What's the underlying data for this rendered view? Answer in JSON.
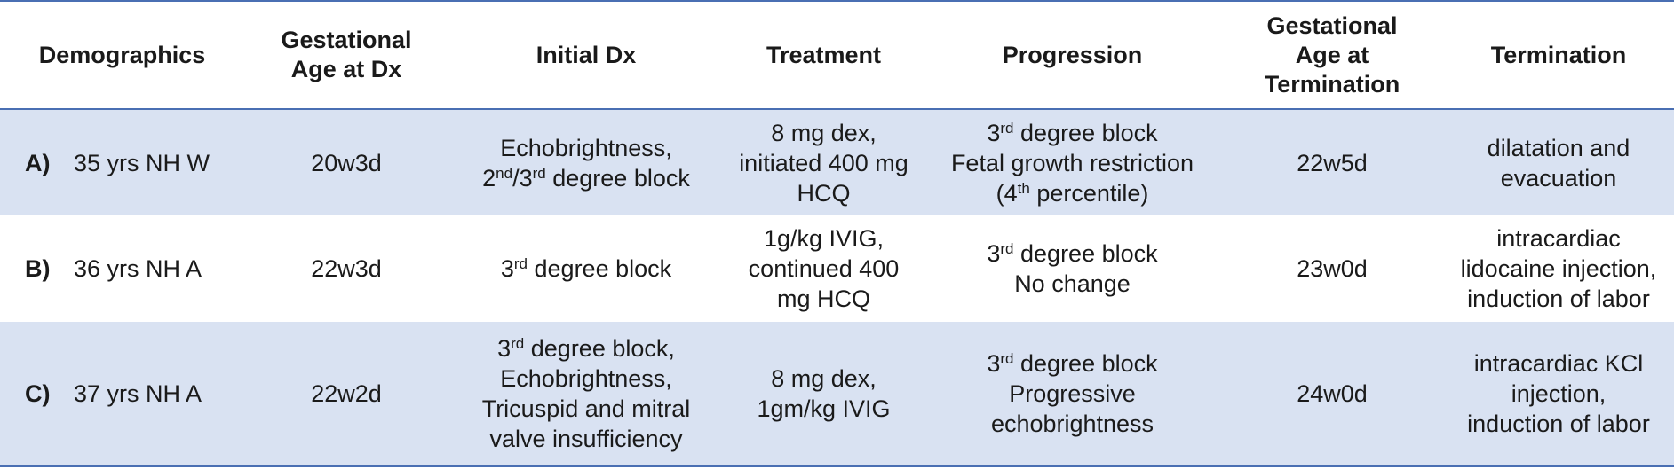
{
  "headers": {
    "demographics": "Demographics",
    "ga_dx_1": "Gestational",
    "ga_dx_2": "Age at Dx",
    "initial_dx": "Initial Dx",
    "treatment": "Treatment",
    "progression": "Progression",
    "ga_term_1": "Gestational",
    "ga_term_2": "Age at",
    "ga_term_3": "Termination",
    "termination": "Termination"
  },
  "rows": [
    {
      "label": "A)",
      "demographics": "35 yrs NH W",
      "ga_dx": "20w3d",
      "initial_dx": {
        "l1": "Echobrightness,",
        "l2_a": "2",
        "l2_sup1": "nd",
        "l2_b": "/3",
        "l2_sup2": "rd",
        "l2_c": " degree block"
      },
      "treatment": [
        "8 mg dex,",
        "initiated 400 mg",
        "HCQ"
      ],
      "progression": {
        "l1_a": "3",
        "l1_sup": "rd",
        "l1_b": " degree block",
        "l2": "Fetal growth restriction",
        "l3_a": "(4",
        "l3_sup": "th",
        "l3_b": " percentile)"
      },
      "ga_term": "22w5d",
      "termination": [
        "dilatation and",
        "evacuation"
      ]
    },
    {
      "label": "B)",
      "demographics": "36 yrs NH A",
      "ga_dx": "22w3d",
      "initial_dx": {
        "l1_a": "3",
        "l1_sup": "rd",
        "l1_b": " degree block"
      },
      "treatment": [
        "1g/kg IVIG,",
        "continued 400",
        "mg HCQ"
      ],
      "progression": {
        "l1_a": "3",
        "l1_sup": "rd",
        "l1_b": " degree block",
        "l2": "No change"
      },
      "ga_term": "23w0d",
      "termination": [
        "intracardiac",
        "lidocaine injection,",
        "induction of labor"
      ]
    },
    {
      "label": "C)",
      "demographics": "37 yrs NH A",
      "ga_dx": "22w2d",
      "initial_dx": {
        "l1_a": "3",
        "l1_sup": "rd",
        "l1_b": " degree block,",
        "l2": "Echobrightness,",
        "l3": "Tricuspid and mitral",
        "l4": "valve insufficiency"
      },
      "treatment": [
        "8 mg dex,",
        "1gm/kg IVIG"
      ],
      "progression": {
        "l1_a": "3",
        "l1_sup": "rd",
        "l1_b": " degree block",
        "l2": "Progressive",
        "l3": "echobrightness"
      },
      "ga_term": "24w0d",
      "termination": [
        "intracardiac KCl",
        "injection,",
        "induction of labor"
      ]
    }
  ],
  "colors": {
    "row_shade": "#d9e2f2",
    "rule": "#4a6fb3"
  }
}
